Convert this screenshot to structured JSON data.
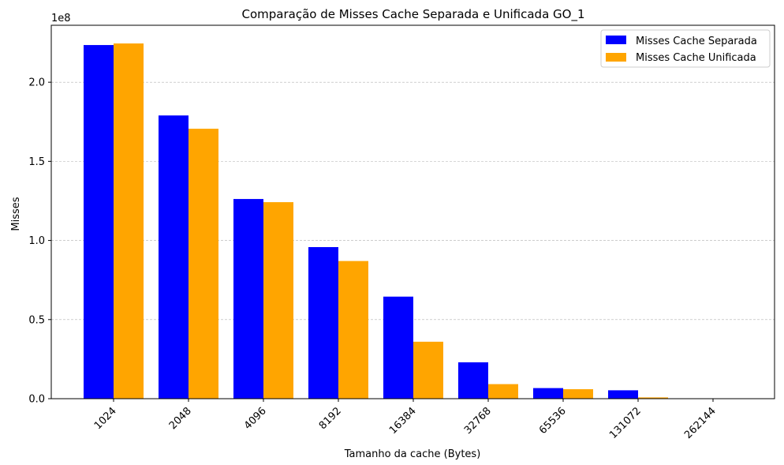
{
  "chart_data": {
    "type": "bar",
    "title": "Comparação de Misses Cache Separada e Unificada GO_1",
    "xlabel": "Tamanho da cache (Bytes)",
    "ylabel": "Misses",
    "y_offset_label": "1e8",
    "categories": [
      "1024",
      "2048",
      "4096",
      "8192",
      "16384",
      "32768",
      "65536",
      "131072",
      "262144"
    ],
    "series": [
      {
        "name": "Misses Cache Separada",
        "color": "#0000ff",
        "values": [
          223500000,
          179000000,
          126200000,
          95800000,
          64500000,
          23000000,
          6700000,
          5300000,
          200000
        ]
      },
      {
        "name": "Misses Cache Unificada",
        "color": "#ffa500",
        "values": [
          224500000,
          170600000,
          124200000,
          87000000,
          36000000,
          9200000,
          6000000,
          800000,
          100000
        ]
      }
    ],
    "ylim": [
      0,
      236000000
    ],
    "yticks": [
      0,
      50000000,
      100000000,
      150000000,
      200000000
    ],
    "ytick_labels": [
      "0.0",
      "0.5",
      "1.0",
      "1.5",
      "2.0"
    ],
    "grid": "y-dashed",
    "legend_position": "top-right"
  }
}
